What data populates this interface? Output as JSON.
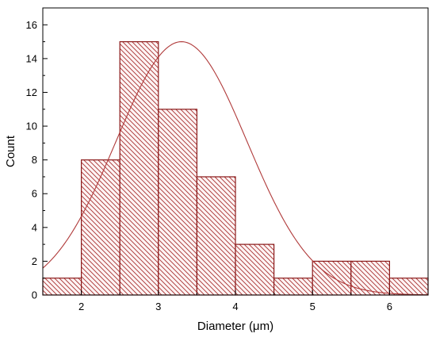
{
  "chart_data": {
    "type": "bar",
    "subtype": "histogram",
    "bin_width": 0.5,
    "bins": [
      {
        "x0": 1.5,
        "x1": 2.0,
        "count": 1
      },
      {
        "x0": 2.0,
        "x1": 2.5,
        "count": 8
      },
      {
        "x0": 2.5,
        "x1": 3.0,
        "count": 15
      },
      {
        "x0": 3.0,
        "x1": 3.5,
        "count": 11
      },
      {
        "x0": 3.5,
        "x1": 4.0,
        "count": 7
      },
      {
        "x0": 4.0,
        "x1": 4.5,
        "count": 3
      },
      {
        "x0": 4.5,
        "x1": 5.0,
        "count": 1
      },
      {
        "x0": 5.0,
        "x1": 5.5,
        "count": 2
      },
      {
        "x0": 5.5,
        "x1": 6.0,
        "count": 2
      },
      {
        "x0": 6.0,
        "x1": 6.5,
        "count": 1
      }
    ],
    "fit_curve": {
      "kind": "gaussian",
      "mean": 3.3,
      "sigma": 0.85,
      "peak": 15
    },
    "xlabel": "Diameter (μm)",
    "ylabel": "Count",
    "xlim": [
      1.5,
      6.5
    ],
    "ylim": [
      0,
      17
    ],
    "xticks": [
      2,
      3,
      4,
      5,
      6
    ],
    "yticks": [
      0,
      2,
      4,
      6,
      8,
      10,
      12,
      14,
      16
    ],
    "bar_fill": "hatched",
    "bar_color": "#8b1a1a",
    "hatch_color": "#a83232",
    "bar_background": "#fdf4f4",
    "curve_color": "#b03a3a",
    "grid": false,
    "legend": "none"
  }
}
